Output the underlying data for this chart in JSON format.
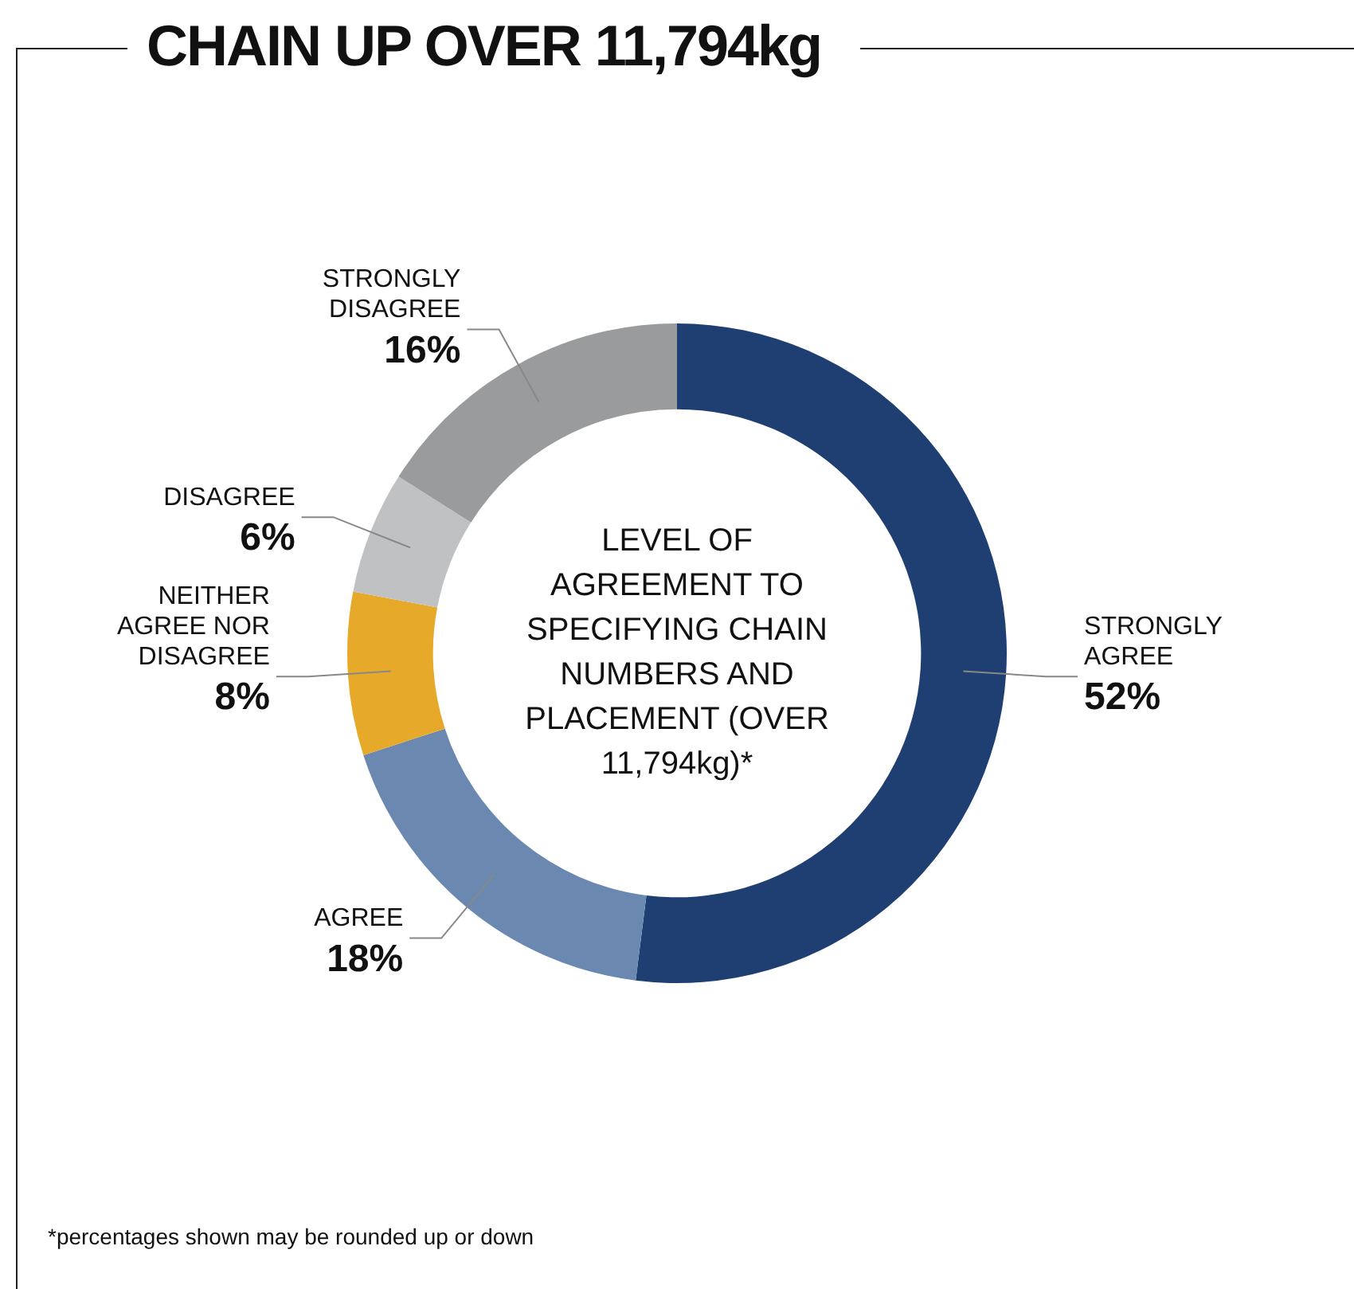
{
  "chart_data": {
    "type": "donut",
    "title": "CHAIN UP OVER 11,794kg",
    "subtitle": "LEVEL OF AGREEMENT TO SPECIFYING CHAIN NUMBERS AND PLACEMENT (OVER 11,794kg)*",
    "categories": [
      "STRONGLY AGREE",
      "AGREE",
      "NEITHER AGREE NOR DISAGREE",
      "DISAGREE",
      "STRONGLY DISAGREE"
    ],
    "values": [
      52,
      18,
      8,
      6,
      16
    ],
    "colors": [
      "#1f3f73",
      "#6a88b0",
      "#e6a92a",
      "#c0c1c3",
      "#9a9b9d"
    ],
    "value_labels": [
      "52%",
      "18%",
      "8%",
      "6%",
      "16%"
    ],
    "legend": false,
    "annotations": [
      "*percentages shown may be rounded up or down"
    ]
  }
}
